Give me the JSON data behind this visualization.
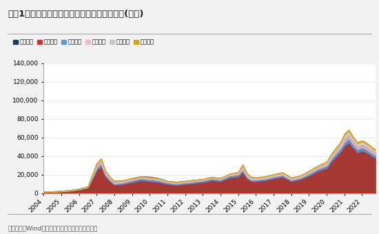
{
  "title": "图表1、主动偏股型基金持有的各类资产的市值(亿元)",
  "footnote": "资料来源：Wind，兴业证券经济与金融研究院整理",
  "legend_labels": [
    "资产净值",
    "股票市值",
    "债券市值",
    "现金市值",
    "其他资产",
    "基金市值"
  ],
  "colors_stack": [
    "#c0392b",
    "#5b9bd5",
    "#f4b8c8",
    "#c8c8c8",
    "#d4a017"
  ],
  "color_nav": "#1f3864",
  "years": [
    2004,
    2004.5,
    2005,
    2005.5,
    2006,
    2006.5,
    2007,
    2007.25,
    2007.5,
    2007.75,
    2008,
    2008.5,
    2009,
    2009.5,
    2010,
    2010.5,
    2011,
    2011.5,
    2012,
    2012.5,
    2013,
    2013.5,
    2014,
    2014.5,
    2015,
    2015.25,
    2015.5,
    2015.75,
    2016,
    2016.5,
    2017,
    2017.5,
    2018,
    2018.5,
    2019,
    2019.5,
    2020,
    2020.25,
    2020.5,
    2020.75,
    2021,
    2021.25,
    2021.5,
    2021.75,
    2022,
    2022.25,
    2022.5,
    2022.75
  ],
  "nav": [
    1500,
    1700,
    2200,
    3000,
    4500,
    7000,
    30000,
    35000,
    23000,
    17000,
    13000,
    13500,
    16000,
    18000,
    17500,
    16000,
    13000,
    12000,
    13000,
    14000,
    15000,
    17000,
    16000,
    20000,
    22000,
    28000,
    20000,
    16000,
    16000,
    17000,
    19000,
    21000,
    16000,
    18000,
    23000,
    28000,
    32000,
    40000,
    45000,
    50000,
    58000,
    62000,
    55000,
    50000,
    52000,
    50000,
    47000,
    44000
  ],
  "stock": [
    1200,
    1400,
    1800,
    2500,
    3800,
    6000,
    25000,
    29000,
    18000,
    13000,
    9000,
    10000,
    12000,
    14000,
    13000,
    12000,
    10000,
    9000,
    10000,
    11000,
    12000,
    14000,
    13000,
    17000,
    18000,
    23000,
    16000,
    13000,
    13000,
    14000,
    16000,
    18000,
    13000,
    15000,
    19000,
    24000,
    27000,
    34000,
    39000,
    44000,
    51000,
    55000,
    49000,
    44000,
    46000,
    44000,
    41000,
    38000
  ],
  "bond": [
    120,
    130,
    150,
    200,
    280,
    400,
    2500,
    3000,
    2000,
    1600,
    1300,
    1500,
    1800,
    2000,
    1900,
    1800,
    1400,
    1300,
    1400,
    1500,
    1600,
    1700,
    1600,
    1900,
    2100,
    2400,
    1700,
    1400,
    1400,
    1500,
    1600,
    1700,
    1400,
    1500,
    1900,
    2100,
    2600,
    2800,
    3200,
    3500,
    3800,
    4000,
    3600,
    3300,
    3200,
    3100,
    2900,
    2800
  ],
  "cash": [
    80,
    90,
    120,
    200,
    280,
    350,
    3500,
    3800,
    2600,
    2100,
    1700,
    1700,
    1500,
    1500,
    1500,
    1500,
    1200,
    1100,
    1100,
    1100,
    1100,
    1200,
    1100,
    1300,
    1700,
    3500,
    2200,
    1700,
    1500,
    1500,
    1500,
    1600,
    1300,
    1400,
    1700,
    2000,
    2300,
    2700,
    3000,
    3200,
    4200,
    4500,
    3900,
    3500,
    3700,
    3500,
    3300,
    3100
  ],
  "other": [
    40,
    50,
    60,
    80,
    90,
    100,
    900,
    1000,
    700,
    600,
    400,
    450,
    380,
    370,
    360,
    360,
    280,
    280,
    290,
    290,
    290,
    280,
    280,
    290,
    550,
    1400,
    900,
    700,
    700,
    700,
    750,
    800,
    700,
    700,
    900,
    1100,
    1400,
    1800,
    2000,
    2200,
    3300,
    3500,
    3000,
    2800,
    2800,
    2700,
    2500,
    2400
  ],
  "fund": [
    25,
    28,
    40,
    50,
    70,
    90,
    450,
    550,
    350,
    270,
    180,
    180,
    180,
    180,
    180,
    180,
    130,
    130,
    135,
    135,
    140,
    140,
    140,
    180,
    270,
    720,
    540,
    450,
    360,
    360,
    360,
    370,
    320,
    320,
    370,
    460,
    550,
    720,
    1000,
    1100,
    1400,
    1500,
    1300,
    1200,
    1100,
    1050,
    1000,
    950
  ],
  "ylim": [
    0,
    140000
  ],
  "yticks": [
    0,
    20000,
    40000,
    60000,
    80000,
    100000,
    120000,
    140000
  ],
  "bg_color": "#f2f2f2",
  "plot_bg": "#ffffff"
}
